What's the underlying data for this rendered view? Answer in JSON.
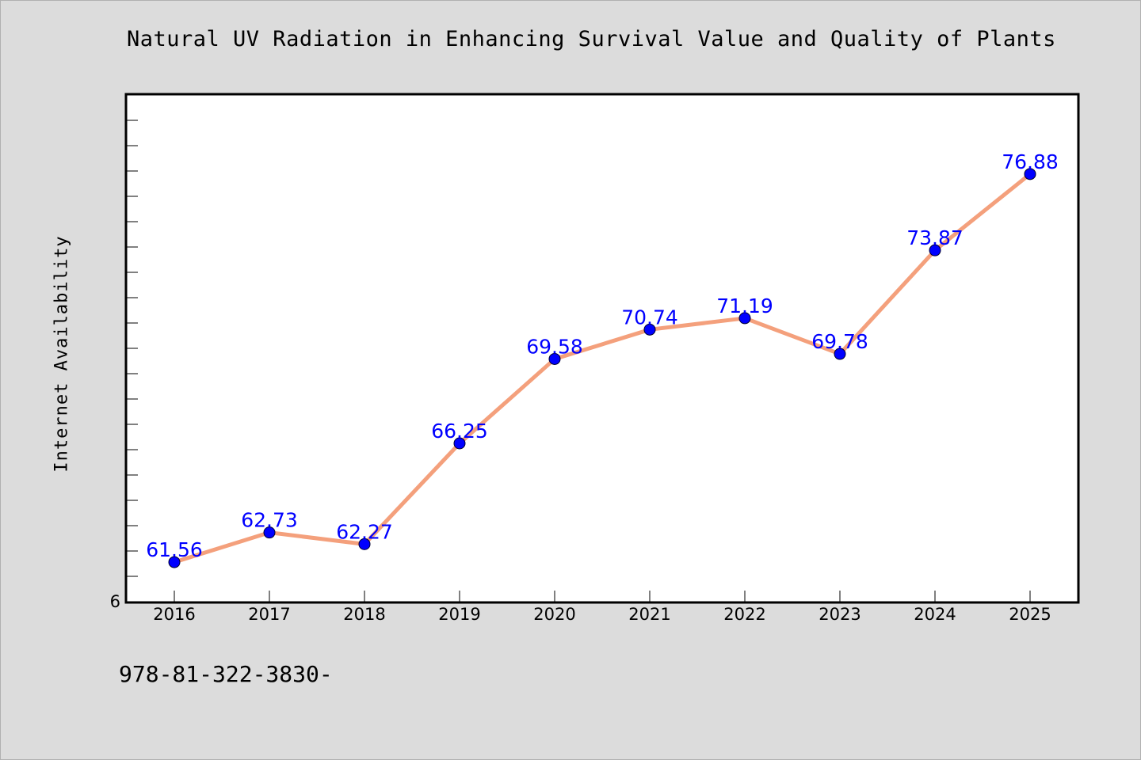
{
  "chart_data": {
    "type": "line",
    "title": "Natural UV Radiation in Enhancing Survival Value and Quality of Plants",
    "ylabel": "Internet Availability",
    "xlabel": "",
    "categories": [
      "2016",
      "2017",
      "2018",
      "2019",
      "2020",
      "2021",
      "2022",
      "2023",
      "2024",
      "2025"
    ],
    "values": [
      61.56,
      62.73,
      62.27,
      66.25,
      69.58,
      70.74,
      71.19,
      69.78,
      73.87,
      76.88
    ],
    "data_labels": [
      "61.56",
      "62.73",
      "62.27",
      "66.25",
      "69.58",
      "70.74",
      "71.19",
      "69.78",
      "73.87",
      "76.88"
    ],
    "y_tick_label": "6",
    "ylim": [
      60,
      80
    ],
    "grid": false,
    "colors": {
      "line": "#f4a07c",
      "marker": "#0000ff",
      "labels": "#0000ff",
      "background": "#dcdcdc",
      "plot_background": "#ffffff"
    }
  },
  "footer": {
    "text": "978-81-322-3830-"
  }
}
